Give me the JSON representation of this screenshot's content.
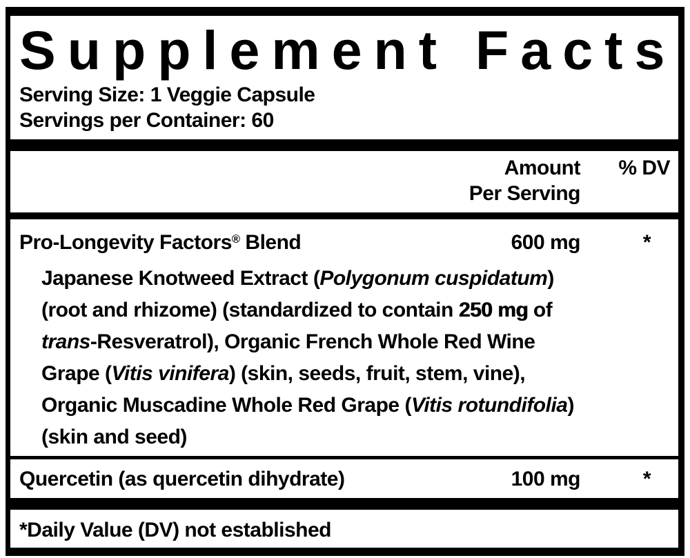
{
  "title": "Supplement Facts",
  "serving": {
    "size_line": "Serving Size: 1 Veggie Capsule",
    "container_line": "Servings per Container: 60"
  },
  "table": {
    "header": {
      "amount_line1": "Amount",
      "amount_line2": "Per Serving",
      "dv_label": "% DV"
    },
    "rows": [
      {
        "name_rich": [
          {
            "t": "Pro-Longevity Factors"
          },
          {
            "t": "®",
            "sup": true
          },
          {
            "t": " Blend"
          }
        ],
        "amount": "600 mg",
        "dv": "*",
        "description_lines": [
          [
            {
              "t": "Japanese Knotweed Extract ("
            },
            {
              "t": "Polygonum cuspidatum",
              "i": true
            },
            {
              "t": ")"
            }
          ],
          [
            {
              "t": "(root and rhizome) (standardized to contain "
            },
            {
              "t": "250 mg",
              "b": true
            },
            {
              "t": " of"
            }
          ],
          [
            {
              "t": "trans",
              "i": true
            },
            {
              "t": "-Resveratrol), Organic French Whole Red Wine"
            }
          ],
          [
            {
              "t": "Grape ("
            },
            {
              "t": "Vitis vinifera",
              "i": true
            },
            {
              "t": ") (skin, seeds, fruit, stem, vine),"
            }
          ],
          [
            {
              "t": "Organic Muscadine Whole Red Grape ("
            },
            {
              "t": "Vitis rotundifolia",
              "i": true
            },
            {
              "t": ")"
            }
          ],
          [
            {
              "t": "(skin and seed)"
            }
          ]
        ]
      },
      {
        "name_rich": [
          {
            "t": "Quercetin (as quercetin dihydrate)"
          }
        ],
        "amount": "100 mg",
        "dv": "*",
        "description_lines": []
      }
    ]
  },
  "footnote": "*Daily Value (DV) not established",
  "colors": {
    "ink": "#000000",
    "background": "#ffffff"
  }
}
